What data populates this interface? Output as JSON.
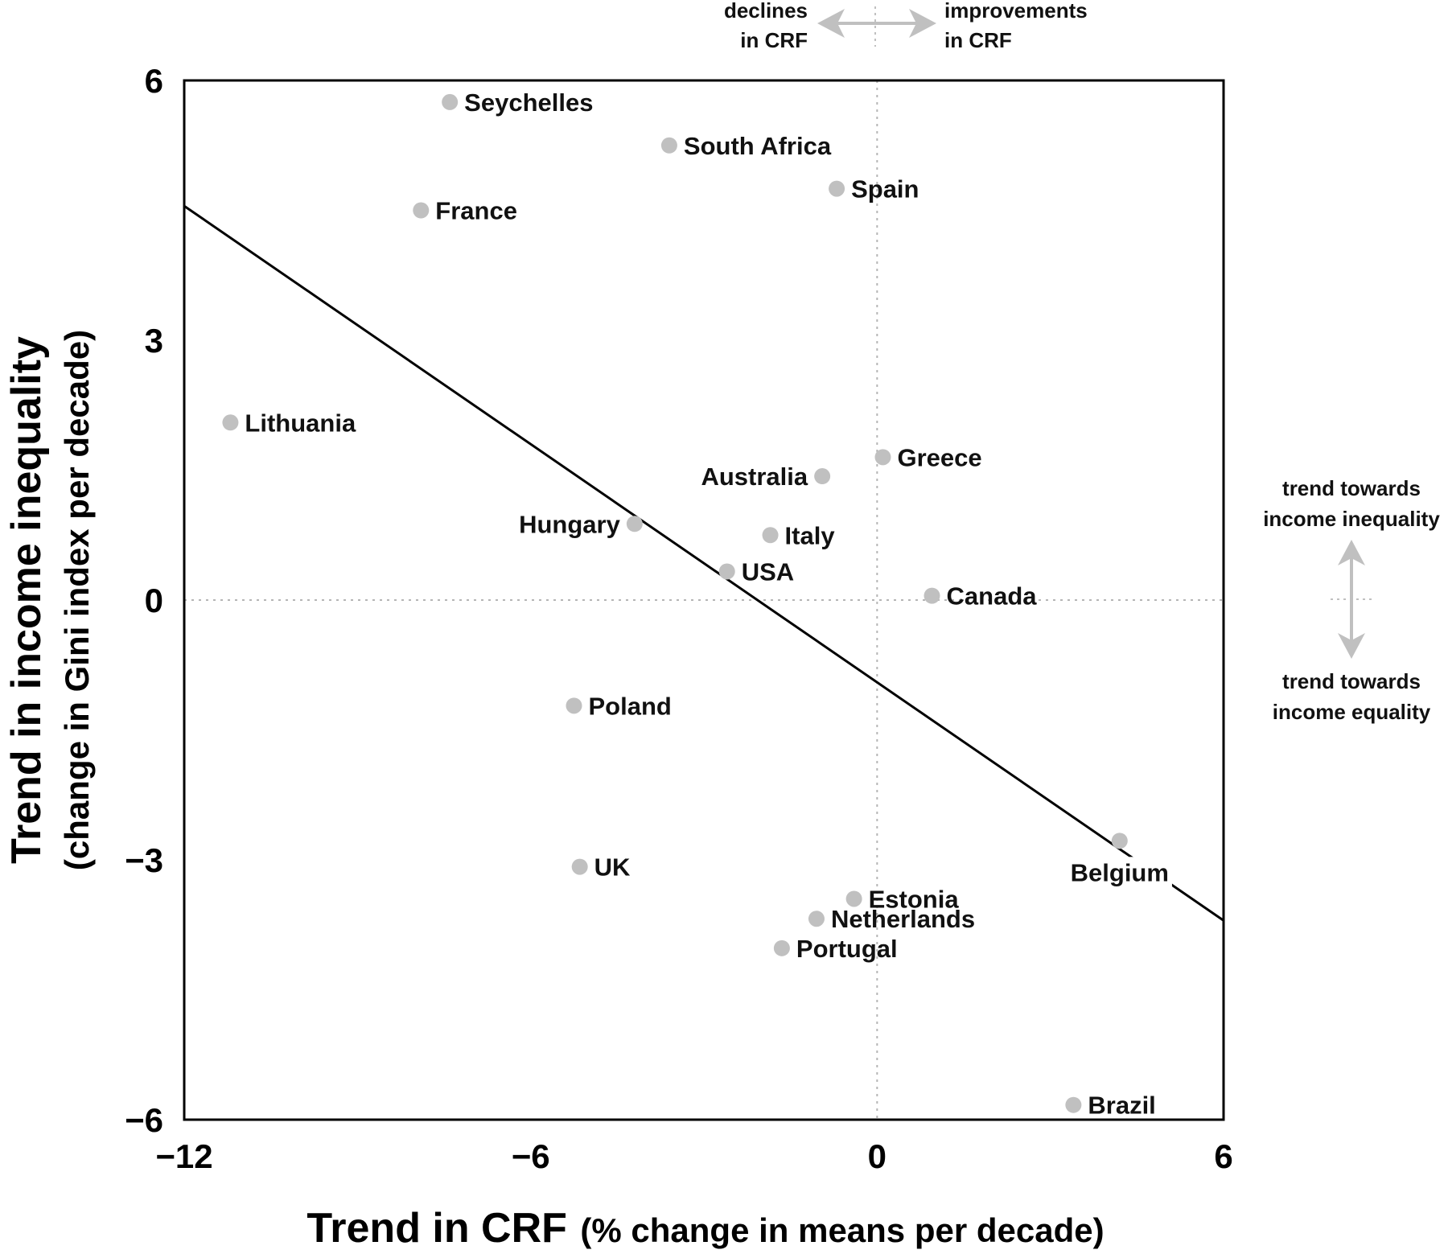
{
  "chart_data": {
    "type": "scatter",
    "xlim": [
      -12,
      6
    ],
    "ylim": [
      -6,
      6
    ],
    "x_ticks": [
      "−12",
      "−6",
      "0",
      "6"
    ],
    "y_ticks": [
      "6",
      "3",
      "0",
      "−3",
      "−6"
    ],
    "xlabel": "Trend in CRF",
    "xlabel_sub": "(% change in means per decade)",
    "ylabel": "Trend in income inequality",
    "ylabel_sub": "(change in Gini index per decade)",
    "grid": false,
    "reference_lines": {
      "x": 0,
      "y": 0,
      "style": "dotted"
    },
    "points": [
      {
        "label": "Seychelles",
        "x": -7.4,
        "y": 5.75
      },
      {
        "label": "South Africa",
        "x": -3.6,
        "y": 5.25
      },
      {
        "label": "Spain",
        "x": -0.7,
        "y": 4.75
      },
      {
        "label": "France",
        "x": -7.9,
        "y": 4.5
      },
      {
        "label": "Lithuania",
        "x": -11.2,
        "y": 2.05
      },
      {
        "label": "Greece",
        "x": 0.1,
        "y": 1.65
      },
      {
        "label": "Australia",
        "x": -0.95,
        "y": 1.43
      },
      {
        "label": "Hungary",
        "x": -4.2,
        "y": 0.88
      },
      {
        "label": "Italy",
        "x": -1.85,
        "y": 0.75
      },
      {
        "label": "USA",
        "x": -2.6,
        "y": 0.33
      },
      {
        "label": "Canada",
        "x": 0.95,
        "y": 0.05
      },
      {
        "label": "Poland",
        "x": -5.25,
        "y": -1.22
      },
      {
        "label": "Belgium",
        "x": 4.2,
        "y": -2.78
      },
      {
        "label": "UK",
        "x": -5.15,
        "y": -3.08
      },
      {
        "label": "Estonia",
        "x": -0.4,
        "y": -3.45
      },
      {
        "label": "Netherlands",
        "x": -1.05,
        "y": -3.68
      },
      {
        "label": "Portugal",
        "x": -1.65,
        "y": -4.02
      },
      {
        "label": "Brazil",
        "x": 3.4,
        "y": -5.83
      }
    ],
    "fit_line": {
      "x": [
        -12,
        6
      ],
      "y": [
        4.55,
        -3.7
      ]
    },
    "annotations": {
      "crf_left": [
        "declines",
        "in CRF"
      ],
      "crf_right": [
        "improvements",
        "in CRF"
      ],
      "ineq_up": [
        "trend towards",
        "income inequality"
      ],
      "ineq_down": [
        "trend towards",
        "income equality"
      ]
    },
    "colors": {
      "points": "#c0c0c0",
      "fit_line": "#000000",
      "reference": "#b5b5b5",
      "arrows": "#c0c0c0"
    }
  }
}
